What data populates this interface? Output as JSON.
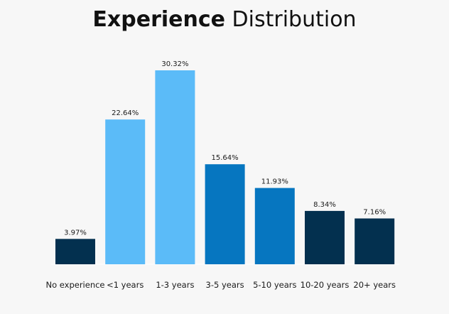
{
  "chart_data": {
    "type": "bar",
    "title_bold": "Experience",
    "title_rest": "Distribution",
    "categories": [
      "No experience",
      "<1 years",
      "1-3 years",
      "3-5 years",
      "5-10 years",
      "10-20 years",
      "20+ years"
    ],
    "values": [
      3.97,
      22.64,
      30.32,
      15.64,
      11.93,
      8.34,
      7.16
    ],
    "value_labels": [
      "3.97%",
      "22.64%",
      "30.32%",
      "15.64%",
      "11.93%",
      "8.34%",
      "7.16%"
    ],
    "bar_colors": [
      "#03304f",
      "#5bbbf8",
      "#5bbbf8",
      "#0676c0",
      "#0676c0",
      "#03304f",
      "#03304f"
    ],
    "ylim": [
      0,
      30.32
    ],
    "grid": false,
    "legend": "none"
  }
}
